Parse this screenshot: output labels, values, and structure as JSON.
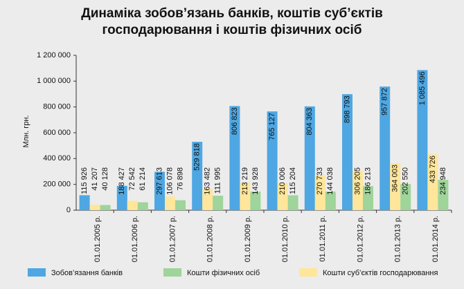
{
  "chart_data": {
    "type": "bar",
    "title": [
      "Динаміка зобов’язань банків, коштів суб’єктів",
      "господарювання і коштів фізичних осіб"
    ],
    "ylabel": "Млн. грн.",
    "categories": [
      "01.01.2005 р.",
      "01.01.2006 р.",
      "01.01.2007 р.",
      "01.01.2008 р.",
      "01.01.2009 р.",
      "01.01.2010 р.",
      "01.01.2011 р.",
      "01.01.2012 р.",
      "01.01.2013 р.",
      "01.01.2014 р."
    ],
    "series": [
      {
        "name": "Зобов’язання банків",
        "color": "#4ea7e2",
        "values": [
          115926,
          188427,
          297613,
          529818,
          806823,
          765127,
          804363,
          898793,
          957872,
          1085496
        ],
        "value_labels": [
          "115 926",
          "188 427",
          "297 613",
          "529 818",
          "806 823",
          "765 127",
          "804 363",
          "898 793",
          "957 872",
          "1 085 496"
        ]
      },
      {
        "name": "Кошти фізичних осіб",
        "color": "#9fd49a",
        "values": [
          40128,
          61214,
          76898,
          111995,
          143928,
          115204,
          144038,
          186213,
          202550,
          234948
        ],
        "value_labels": [
          "40 128",
          "61 214",
          "76 898",
          "111 995",
          "143 928",
          "115 204",
          "144 038",
          "186 213",
          "202 550",
          "234 948"
        ]
      },
      {
        "name": "Кошти суб’єктів господарювання",
        "color": "#ffe69a",
        "values": [
          41207,
          72542,
          106078,
          163482,
          213219,
          210006,
          270733,
          306205,
          364003,
          433726
        ],
        "value_labels": [
          "41 207",
          "72 542",
          "106 078",
          "163 482",
          "213 219",
          "210 006",
          "270 733",
          "306 205",
          "364 003",
          "433 726"
        ]
      }
    ],
    "ylim": [
      0,
      1200000
    ],
    "yticks": [
      0,
      {
        "value": 200000,
        "label": "200 000"
      },
      {
        "value": 400000,
        "label": "400 000"
      },
      {
        "value": 600000,
        "label": "600 000"
      },
      {
        "value": 800000,
        "label": "800 000"
      },
      {
        "value": 1000000,
        "label": "1 000 000"
      },
      {
        "value": 1200000,
        "label": "1 200 000"
      }
    ]
  }
}
